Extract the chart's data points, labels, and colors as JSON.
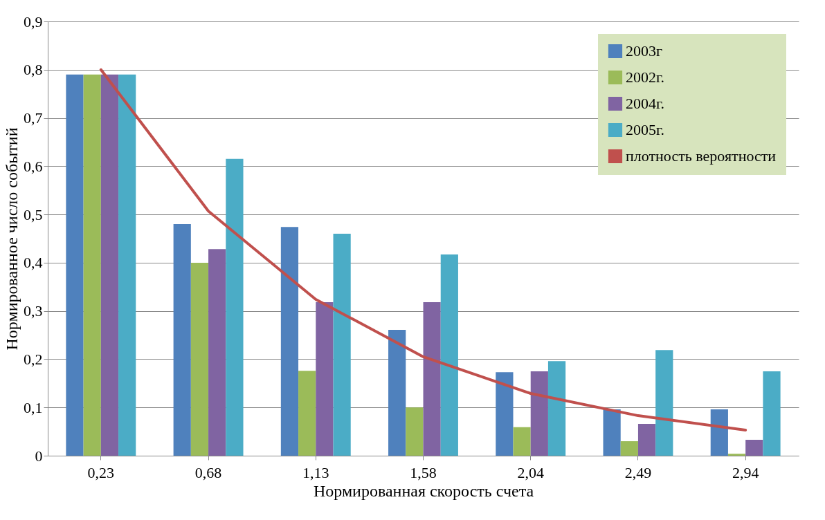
{
  "chart_data": {
    "type": "bar",
    "xlabel": "Нормированная скорость счета",
    "ylabel": "Нормированное число событий",
    "categories": [
      "0,23",
      "0,68",
      "1,13",
      "1,58",
      "2,04",
      "2,49",
      "2,94"
    ],
    "ylim": [
      0,
      0.9
    ],
    "yticks": [
      {
        "value": 0,
        "label": "0"
      },
      {
        "value": 0.1,
        "label": "0,1"
      },
      {
        "value": 0.2,
        "label": "0,2"
      },
      {
        "value": 0.3,
        "label": "0,3"
      },
      {
        "value": 0.4,
        "label": "0,4"
      },
      {
        "value": 0.5,
        "label": "0,5"
      },
      {
        "value": 0.6,
        "label": "0,6"
      },
      {
        "value": 0.7,
        "label": "0,7"
      },
      {
        "value": 0.8,
        "label": "0,8"
      },
      {
        "value": 0.9,
        "label": "0,9"
      }
    ],
    "grid": "y",
    "legend": "top right",
    "series": [
      {
        "name": "2003г",
        "color": "#4f81bd",
        "values": [
          0.79,
          0.48,
          0.474,
          0.261,
          0.173,
          0.096,
          0.096
        ]
      },
      {
        "name": "2002г.",
        "color": "#9bbb59",
        "values": [
          0.79,
          0.4,
          0.176,
          0.1,
          0.059,
          0.03,
          0.004
        ]
      },
      {
        "name": "2004г.",
        "color": "#8064a2",
        "values": [
          0.79,
          0.428,
          0.318,
          0.318,
          0.175,
          0.066,
          0.033
        ]
      },
      {
        "name": "2005г.",
        "color": "#4bacc6",
        "values": [
          0.79,
          0.615,
          0.46,
          0.417,
          0.196,
          0.219,
          0.175
        ]
      },
      {
        "name": "плотность вероятности",
        "type": "line",
        "color": "#c0504d",
        "values": [
          0.8,
          0.507,
          0.324,
          0.205,
          0.129,
          0.083,
          0.053
        ]
      }
    ]
  }
}
